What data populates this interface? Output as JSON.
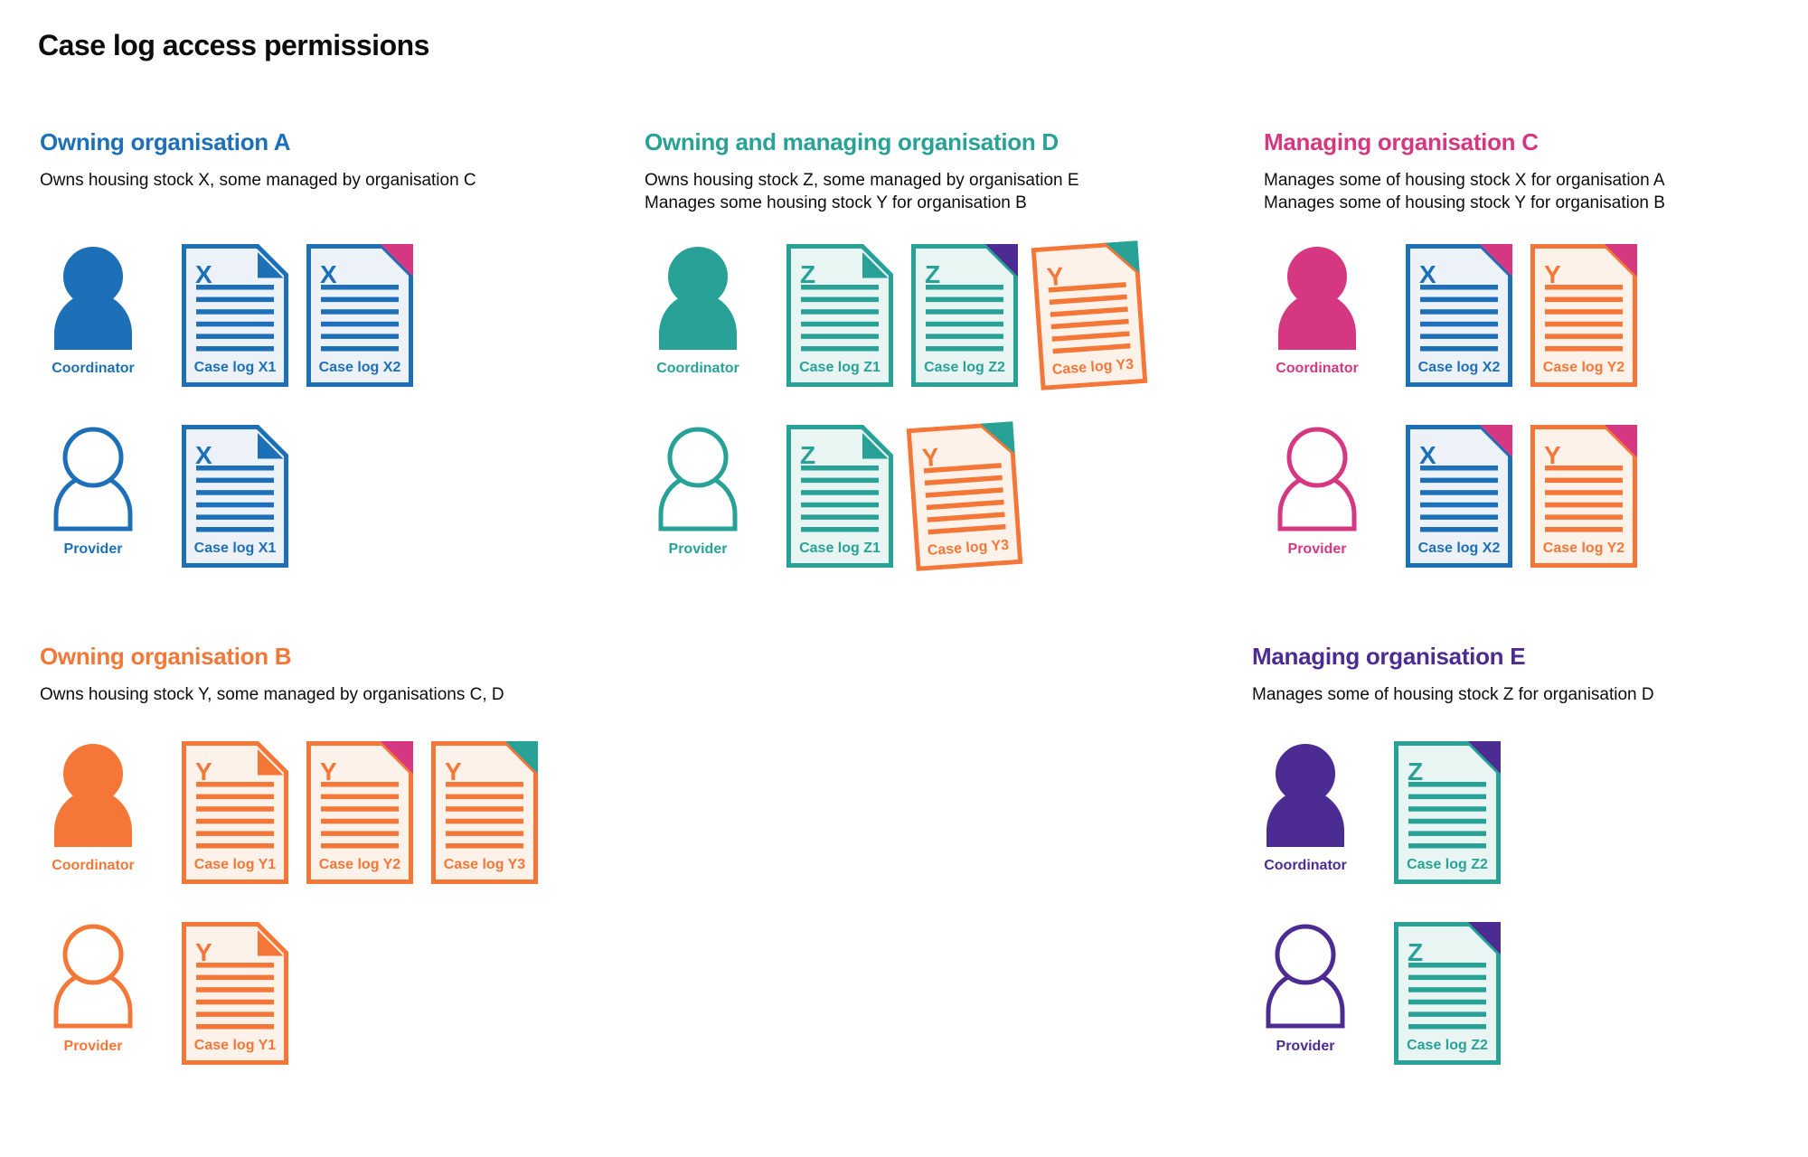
{
  "title": "Case log access permissions",
  "palette": {
    "blue": "#1d70b8",
    "teal": "#28a197",
    "orange": "#f47738",
    "pink": "#d53880",
    "purple": "#4c2c92",
    "text": "#0b0c0c",
    "blue_tint": "#edf2f9",
    "teal_tint": "#e9f5f2",
    "orange_tint": "#fdf2e9"
  },
  "sections": [
    {
      "id": "org-a",
      "heading": "Owning organisation A",
      "color_key": "blue",
      "description": [
        "Owns housing stock X, some managed by organisation C"
      ],
      "rows": [
        {
          "role": "Coordinator",
          "person_style": "filled",
          "docs": [
            {
              "label": "Case log X1",
              "letter": "X",
              "doc": "blue",
              "fold": "blue"
            },
            {
              "label": "Case log X2",
              "letter": "X",
              "doc": "blue",
              "fold": "pink"
            }
          ]
        },
        {
          "role": "Provider",
          "person_style": "outline",
          "docs": [
            {
              "label": "Case log X1",
              "letter": "X",
              "doc": "blue",
              "fold": "blue"
            }
          ]
        }
      ]
    },
    {
      "id": "org-d",
      "heading": "Owning and managing organisation D",
      "color_key": "teal",
      "description": [
        "Owns housing stock Z, some managed by organisation E",
        "Manages some housing stock Y for organisation B"
      ],
      "rows": [
        {
          "role": "Coordinator",
          "person_style": "filled",
          "docs": [
            {
              "label": "Case log Z1",
              "letter": "Z",
              "doc": "teal",
              "fold": "teal"
            },
            {
              "label": "Case log Z2",
              "letter": "Z",
              "doc": "teal",
              "fold": "purple"
            },
            {
              "label": "Case log Y3",
              "letter": "Y",
              "doc": "orange",
              "fold": "teal",
              "tilt": -4
            }
          ]
        },
        {
          "role": "Provider",
          "person_style": "outline",
          "docs": [
            {
              "label": "Case log Z1",
              "letter": "Z",
              "doc": "teal",
              "fold": "teal"
            },
            {
              "label": "Case log Y3",
              "letter": "Y",
              "doc": "orange",
              "fold": "teal",
              "tilt": -4
            }
          ]
        }
      ]
    },
    {
      "id": "org-c",
      "heading": "Managing organisation C",
      "color_key": "pink",
      "description": [
        "Manages some of housing stock X for organisation A",
        "Manages some of housing stock Y for organisation B"
      ],
      "rows": [
        {
          "role": "Coordinator",
          "person_style": "filled",
          "docs": [
            {
              "label": "Case log X2",
              "letter": "X",
              "doc": "blue",
              "fold": "pink"
            },
            {
              "label": "Case log Y2",
              "letter": "Y",
              "doc": "orange",
              "fold": "pink"
            }
          ]
        },
        {
          "role": "Provider",
          "person_style": "outline",
          "docs": [
            {
              "label": "Case log X2",
              "letter": "X",
              "doc": "blue",
              "fold": "pink"
            },
            {
              "label": "Case log Y2",
              "letter": "Y",
              "doc": "orange",
              "fold": "pink"
            }
          ]
        }
      ]
    },
    {
      "id": "org-b",
      "heading": "Owning organisation B",
      "color_key": "orange",
      "description": [
        "Owns housing stock Y, some managed by organisations C, D"
      ],
      "rows": [
        {
          "role": "Coordinator",
          "person_style": "filled",
          "docs": [
            {
              "label": "Case log Y1",
              "letter": "Y",
              "doc": "orange",
              "fold": "orange"
            },
            {
              "label": "Case log Y2",
              "letter": "Y",
              "doc": "orange",
              "fold": "pink"
            },
            {
              "label": "Case log Y3",
              "letter": "Y",
              "doc": "orange",
              "fold": "teal"
            }
          ]
        },
        {
          "role": "Provider",
          "person_style": "outline",
          "docs": [
            {
              "label": "Case log Y1",
              "letter": "Y",
              "doc": "orange",
              "fold": "orange"
            }
          ]
        }
      ]
    },
    {
      "id": "org-e",
      "heading": "Managing organisation E",
      "color_key": "purple",
      "description": [
        "Manages some of housing stock Z for organisation D"
      ],
      "rows": [
        {
          "role": "Coordinator",
          "person_style": "filled",
          "docs": [
            {
              "label": "Case log Z2",
              "letter": "Z",
              "doc": "teal",
              "fold": "purple"
            }
          ]
        },
        {
          "role": "Provider",
          "person_style": "outline",
          "docs": [
            {
              "label": "Case log Z2",
              "letter": "Z",
              "doc": "teal",
              "fold": "purple"
            }
          ]
        }
      ]
    }
  ]
}
